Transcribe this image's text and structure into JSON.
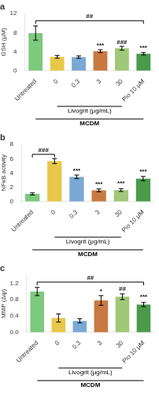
{
  "chart_data": [
    {
      "type": "bar",
      "title": "a",
      "ylabel": "GSH (μM)",
      "categories": [
        "Untreated",
        "0",
        "0.3",
        "3",
        "30",
        "Pio 10 μM"
      ],
      "values": [
        7.9,
        2.9,
        2.85,
        4.1,
        4.7,
        3.55
      ],
      "errors": [
        1.5,
        0.3,
        0.25,
        0.3,
        0.4,
        0.25
      ],
      "colors": [
        "#7dc97d",
        "#e8c84a",
        "#7aa8d4",
        "#c87941",
        "#a0c878",
        "#4a9a4a"
      ],
      "ylim": [
        0,
        12
      ],
      "yticks": [
        0,
        4,
        8,
        12
      ],
      "grid": false,
      "annotations": [
        {
          "text": "##",
          "from": "Untreated",
          "to": "Pio 10 μM",
          "y": 10.5
        },
        {
          "text": "***",
          "category": "3",
          "y": 4.6
        },
        {
          "text": "###",
          "category": "30",
          "y": 5.3
        },
        {
          "text": "***",
          "category": "Pio 10 μM",
          "y": 4.05
        }
      ],
      "x_groups": [
        {
          "text": "Livogrit (μg/mL)",
          "from": "0",
          "to": "30"
        },
        {
          "text": "MCDM",
          "from": "Untreated",
          "to": "Pio 10 μM"
        }
      ]
    },
    {
      "type": "bar",
      "title": "b",
      "ylabel": "NFκB activity",
      "categories": [
        "Untreated",
        "0",
        "0.3",
        "3",
        "30",
        "Pio 10 μM"
      ],
      "values": [
        1.05,
        5.65,
        3.45,
        1.55,
        1.6,
        3.2
      ],
      "errors": [
        0.15,
        0.35,
        0.25,
        0.2,
        0.2,
        0.3
      ],
      "colors": [
        "#7dc97d",
        "#e8c84a",
        "#7aa8d4",
        "#c87941",
        "#a0c878",
        "#4a9a4a"
      ],
      "ylim": [
        0,
        8
      ],
      "yticks": [
        0,
        2,
        4,
        6,
        8
      ],
      "grid": false,
      "annotations": [
        {
          "text": "###",
          "from": "Untreated",
          "to": "0",
          "y": 6.6
        },
        {
          "text": "***",
          "category": "0.3",
          "y": 3.9
        },
        {
          "text": "***",
          "category": "3",
          "y": 2.0
        },
        {
          "text": "***",
          "category": "30",
          "y": 2.05
        },
        {
          "text": "***",
          "category": "Pio 10 μM",
          "y": 3.7
        }
      ],
      "x_groups": [
        {
          "text": "Livogrit (μg/mL)",
          "from": "0",
          "to": "30"
        },
        {
          "text": "MCDM",
          "from": "Untreated",
          "to": "Pio 10 μM"
        }
      ]
    },
    {
      "type": "bar",
      "title": "c",
      "ylabel": "MMP (Δψ)",
      "categories": [
        "Untreated",
        "0",
        "0.3",
        "3",
        "30",
        "Pio 10 μM"
      ],
      "values": [
        1.0,
        0.35,
        0.28,
        0.78,
        0.87,
        0.68
      ],
      "errors": [
        0.1,
        0.1,
        0.05,
        0.12,
        0.07,
        0.05
      ],
      "colors": [
        "#7dc97d",
        "#e8c84a",
        "#7aa8d4",
        "#c87941",
        "#a0c878",
        "#4a9a4a"
      ],
      "ylim": [
        0,
        1.4
      ],
      "yticks": [
        {
          "value": 0,
          "label": "0.0"
        },
        0.4,
        0.8,
        1.2
      ],
      "grid": false,
      "annotations": [
        {
          "text": "##",
          "from": "Untreated",
          "to": "Pio 10 μM",
          "y": 1.23
        },
        {
          "text": "*",
          "category": "3",
          "y": 0.93
        },
        {
          "text": "##",
          "category": "30",
          "y": 0.98
        },
        {
          "text": "***",
          "category": "Pio 10 μM",
          "y": 0.78
        }
      ],
      "x_groups": [
        {
          "text": "Livogrit (μg/mL)",
          "from": "0",
          "to": "30"
        },
        {
          "text": "MCDM",
          "from": "Untreated",
          "to": "Pio 10 μM"
        }
      ]
    }
  ]
}
